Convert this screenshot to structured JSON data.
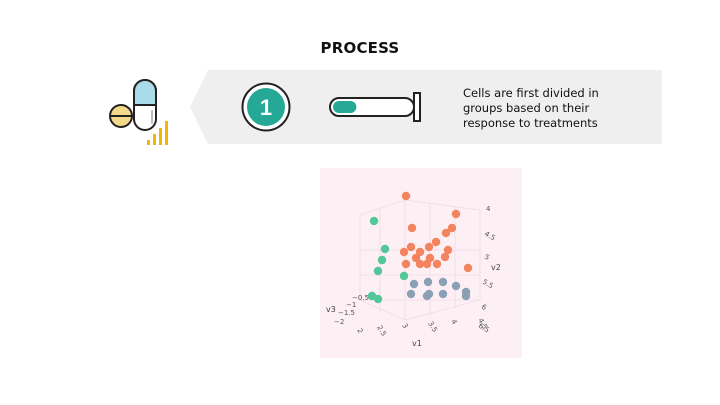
{
  "header": {
    "title": "PROCESS"
  },
  "step": {
    "number": "1",
    "description_lines": [
      "Cells are first divided in",
      "groups based on their",
      "response to treatments"
    ]
  },
  "colors": {
    "teal": "#26a896",
    "banner_gray": "#efefef",
    "pill_blue": "#a9dbe8",
    "pill_yellow": "#f5d98b",
    "bars_gold": "#f2b705",
    "chart_bg": "#fdf0f5",
    "cluster_orange": "#f4845f",
    "cluster_green": "#52c79a",
    "cluster_blue": "#8aa0b5"
  },
  "icons": {
    "pills": "pills-icon",
    "bars": "signal-bars-icon",
    "tube": "test-tube-icon"
  },
  "progress": {
    "tube_fill_fraction": 0.3
  },
  "chart_data": {
    "type": "scatter3d",
    "axes": {
      "x": {
        "title": "v1",
        "ticks": [
          "2",
          "2.5",
          "3",
          "3.5",
          "4",
          "4.5"
        ]
      },
      "y": {
        "title": "v2",
        "ticks": [
          "4",
          "4.5",
          "5",
          "5.5",
          "6",
          "6.5"
        ]
      },
      "z": {
        "title": "v3",
        "ticks": [
          "−0.5",
          "−1",
          "−1.5",
          "−2"
        ]
      }
    },
    "series": [
      {
        "color": "#f4845f",
        "points": [
          [
            406,
            196
          ],
          [
            456,
            214
          ],
          [
            412,
            228
          ],
          [
            446,
            233
          ],
          [
            452,
            228
          ],
          [
            404,
            252
          ],
          [
            411,
            247
          ],
          [
            420,
            252
          ],
          [
            429,
            247
          ],
          [
            436,
            242
          ],
          [
            416,
            258
          ],
          [
            430,
            258
          ],
          [
            445,
            257
          ],
          [
            448,
            250
          ],
          [
            427,
            264
          ],
          [
            420,
            264
          ],
          [
            406,
            264
          ],
          [
            437,
            264
          ],
          [
            468,
            268
          ]
        ]
      },
      {
        "color": "#52c79a",
        "points": [
          [
            374,
            221
          ],
          [
            385,
            249
          ],
          [
            382,
            260
          ],
          [
            378,
            271
          ],
          [
            404,
            276
          ],
          [
            372,
            296
          ],
          [
            378,
            299
          ]
        ]
      },
      {
        "color": "#8aa0b5",
        "points": [
          [
            414,
            284
          ],
          [
            428,
            282
          ],
          [
            443,
            282
          ],
          [
            456,
            286
          ],
          [
            429,
            294
          ],
          [
            443,
            294
          ],
          [
            466,
            292
          ],
          [
            411,
            294
          ],
          [
            427,
            296
          ],
          [
            466,
            296
          ]
        ]
      }
    ]
  }
}
